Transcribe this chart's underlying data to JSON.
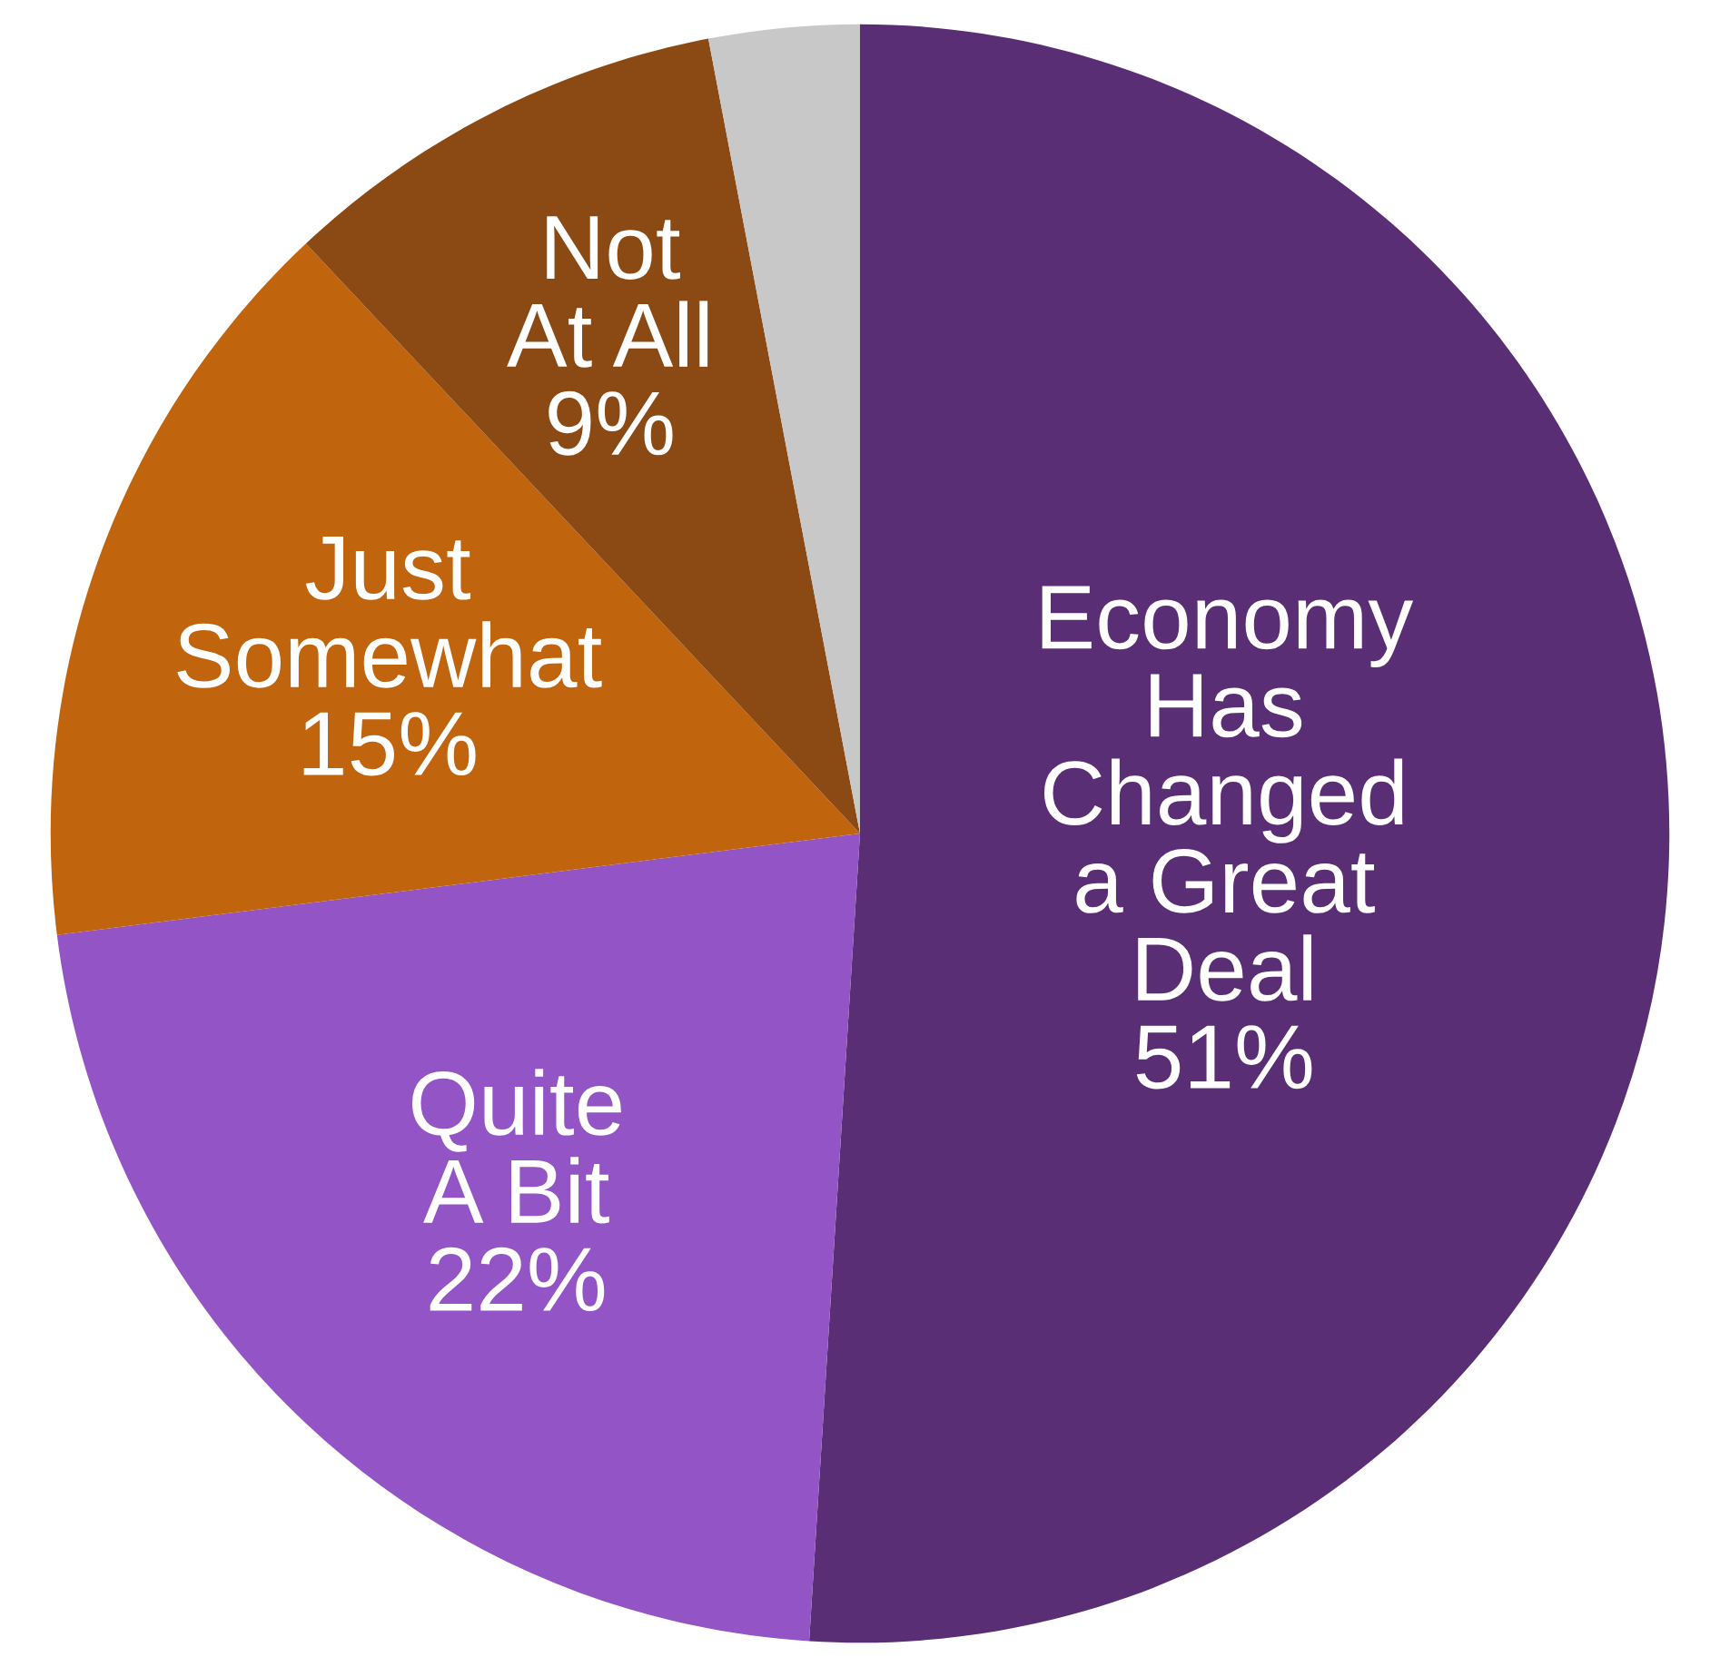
{
  "chart_data": {
    "type": "pie",
    "categories": [
      "Economy\nHas\nChanged\na Great\nDeal",
      "Quite\nA Bit",
      "Just\nSomewhat",
      "Not\nAt All",
      null
    ],
    "values": [
      51,
      22,
      15,
      9,
      3
    ],
    "value_labels": [
      "51%",
      "22%",
      "15%",
      "9%",
      null
    ],
    "colors": [
      "#5a2e74",
      "#9354c6",
      "#c0640e",
      "#8b4a14",
      "#c8c8c8"
    ]
  }
}
